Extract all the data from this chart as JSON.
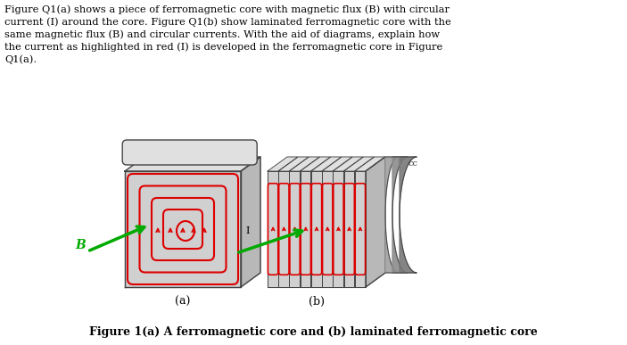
{
  "paragraph_text": "Figure Q1(a) shows a piece of ferromagnetic core with magnetic flux (B) with circular\ncurrent (I) around the core. Figure Q1(b) show laminated ferromagnetic core with the\nsame magnetic flux (B) and circular currents. With the aid of diagrams, explain how\nthe current as highlighted in red (I) is developed in the ferromagnetic core in Figure\nQ1(a).",
  "label_a": "(a)",
  "label_b": "(b)",
  "figure_caption": "Figure 1(a) A ferromagnetic core and (b) laminated ferromagnetic core",
  "bg_color": "#ffffff",
  "text_color": "#000000",
  "red_color": "#dd0000",
  "green_color": "#00aa00",
  "gray_face": "#d0d0d0",
  "gray_top": "#e0e0e0",
  "gray_right": "#b8b8b8",
  "gray_cap": "#888888",
  "edge_color": "#444444"
}
